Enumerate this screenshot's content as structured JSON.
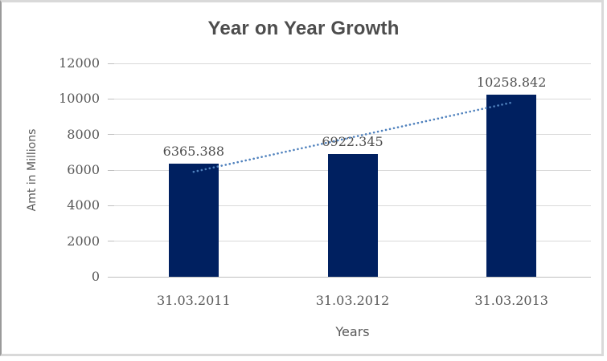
{
  "chart_data": {
    "type": "bar",
    "title": "Year on Year Growth",
    "categories": [
      "31.03.2011",
      "31.03.2012",
      "31.03.2013"
    ],
    "values": [
      6365.388,
      6922.345,
      10258.842
    ],
    "value_labels": [
      "6365.388",
      "6922.345",
      "10258.842"
    ],
    "xlabel": "Years",
    "ylabel": "Amt in Millions",
    "ylim": [
      0,
      12000
    ],
    "ytick_step": 2000,
    "yticks": [
      "0",
      "2000",
      "4000",
      "6000",
      "8000",
      "10000",
      "12000"
    ],
    "grid": true,
    "legend": "none",
    "bar_color": "#002060",
    "gridline_color": "#d9d9d9",
    "text_color": "#595959",
    "trendline": {
      "type": "linear",
      "style": "dotted",
      "color": "#4f81bd"
    }
  }
}
